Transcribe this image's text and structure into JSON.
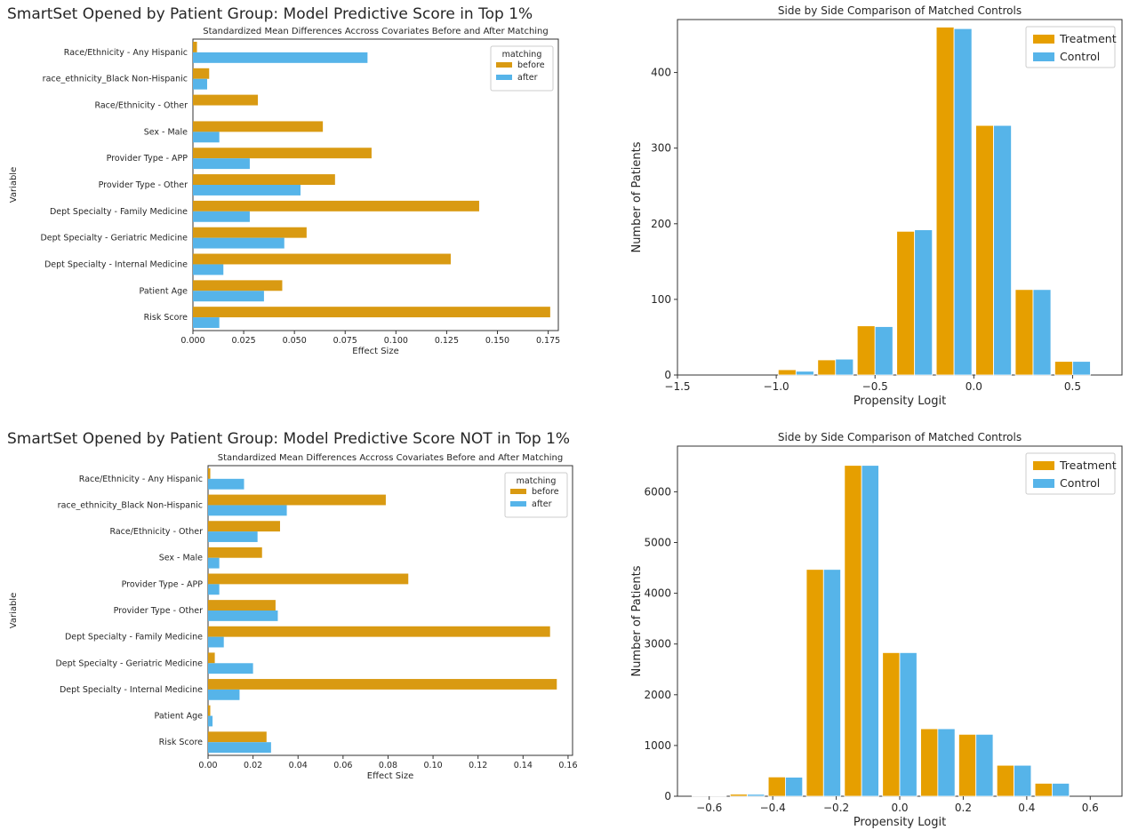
{
  "colors": {
    "before": "#d99a12",
    "after": "#56b4e9",
    "treatment": "#e69f00",
    "control": "#56b4e9"
  },
  "panels": [
    {
      "big_title": "SmartSet Opened by Patient Group: Model Predictive Score in Top 1%",
      "chart_data": {
        "type": "bar",
        "orientation": "horizontal",
        "title": "Standardized Mean Differences Accross Covariates Before and After Matching",
        "xlabel": "Effect Size",
        "ylabel": "Variable",
        "xlim": [
          0,
          0.18
        ],
        "xticks": [
          0.0,
          0.025,
          0.05,
          0.075,
          0.1,
          0.125,
          0.15,
          0.175
        ],
        "xtick_labels": [
          "0.000",
          "0.025",
          "0.050",
          "0.075",
          "0.100",
          "0.125",
          "0.150",
          "0.175"
        ],
        "categories": [
          "Race/Ethnicity - Any Hispanic",
          "race_ethnicity_Black Non-Hispanic",
          "Race/Ethnicity - Other",
          "Sex - Male",
          "Provider Type - APP",
          "Provider Type - Other",
          "Dept Specialty - Family Medicine",
          "Dept Specialty - Geriatric Medicine",
          "Dept Specialty - Internal Medicine",
          "Patient Age",
          "Risk Score"
        ],
        "legend_title": "matching",
        "legend_position": "upper right",
        "series": [
          {
            "name": "before",
            "values": [
              0.002,
              0.008,
              0.032,
              0.064,
              0.088,
              0.07,
              0.141,
              0.056,
              0.127,
              0.044,
              0.176
            ]
          },
          {
            "name": "after",
            "values": [
              0.086,
              0.007,
              0.0,
              0.013,
              0.028,
              0.053,
              0.028,
              0.045,
              0.015,
              0.035,
              0.013
            ]
          }
        ]
      }
    },
    {
      "chart_data": {
        "type": "bar",
        "title": "Side by Side Comparison of Matched Controls",
        "xlabel": "Propensity Logit",
        "ylabel": "Number of Patients",
        "xlim": [
          -1.5,
          0.75
        ],
        "ylim": [
          0,
          470
        ],
        "xticks": [
          -1.5,
          -1.0,
          -0.5,
          0.0,
          0.5
        ],
        "xtick_labels": [
          "−1.5",
          "−1.0",
          "−0.5",
          "0.0",
          "0.5"
        ],
        "yticks": [
          0,
          100,
          200,
          300,
          400
        ],
        "yticks_labels": [
          "0",
          "100",
          "200",
          "300",
          "400"
        ],
        "bin_centers": [
          -0.9,
          -0.7,
          -0.5,
          -0.3,
          -0.1,
          0.1,
          0.3,
          0.5
        ],
        "bin_width": 0.18,
        "legend_position": "upper right",
        "series": [
          {
            "name": "Treatment",
            "values": [
              7,
              20,
              65,
              190,
              460,
              330,
              113,
              18
            ]
          },
          {
            "name": "Control",
            "values": [
              5,
              21,
              64,
              192,
              458,
              330,
              113,
              18
            ]
          }
        ]
      }
    },
    {
      "big_title": "SmartSet Opened by Patient Group: Model Predictive Score NOT in Top 1%",
      "chart_data": {
        "type": "bar",
        "orientation": "horizontal",
        "title": "Standardized Mean Differences Accross Covariates Before and After Matching",
        "xlabel": "Effect Size",
        "ylabel": "Variable",
        "xlim": [
          0,
          0.162
        ],
        "xticks": [
          0.0,
          0.02,
          0.04,
          0.06,
          0.08,
          0.1,
          0.12,
          0.14,
          0.16
        ],
        "xtick_labels": [
          "0.00",
          "0.02",
          "0.04",
          "0.06",
          "0.08",
          "0.10",
          "0.12",
          "0.14",
          "0.16"
        ],
        "categories": [
          "Race/Ethnicity - Any Hispanic",
          "race_ethnicity_Black Non-Hispanic",
          "Race/Ethnicity - Other",
          "Sex - Male",
          "Provider Type - APP",
          "Provider Type - Other",
          "Dept Specialty - Family Medicine",
          "Dept Specialty - Geriatric Medicine",
          "Dept Specialty - Internal Medicine",
          "Patient Age",
          "Risk Score"
        ],
        "legend_title": "matching",
        "legend_position": "upper right",
        "series": [
          {
            "name": "before",
            "values": [
              0.001,
              0.079,
              0.032,
              0.024,
              0.089,
              0.03,
              0.152,
              0.003,
              0.155,
              0.001,
              0.026
            ]
          },
          {
            "name": "after",
            "values": [
              0.016,
              0.035,
              0.022,
              0.005,
              0.005,
              0.031,
              0.007,
              0.02,
              0.014,
              0.002,
              0.028
            ]
          }
        ]
      }
    },
    {
      "chart_data": {
        "type": "bar",
        "title": "Side by Side Comparison of Matched Controls",
        "xlabel": "Propensity Logit",
        "ylabel": "Number of Patients",
        "xlim": [
          -0.7,
          0.7
        ],
        "ylim": [
          0,
          6900
        ],
        "xticks": [
          -0.6,
          -0.4,
          -0.2,
          0.0,
          0.2,
          0.4,
          0.6
        ],
        "xtick_labels": [
          "−0.6",
          "−0.4",
          "−0.2",
          "0.0",
          "0.2",
          "0.4",
          "0.6"
        ],
        "yticks": [
          0,
          1000,
          2000,
          3000,
          4000,
          5000,
          6000
        ],
        "yticks_labels": [
          "0",
          "1000",
          "2000",
          "3000",
          "4000",
          "5000",
          "6000"
        ],
        "bin_centers": [
          -0.6,
          -0.48,
          -0.36,
          -0.24,
          -0.12,
          0.0,
          0.12,
          0.24,
          0.36,
          0.48,
          0.6
        ],
        "bin_width": 0.108,
        "legend_position": "upper right",
        "series": [
          {
            "name": "Treatment",
            "values": [
              5,
              40,
              380,
              4470,
              6520,
              2830,
              1330,
              1220,
              610,
              255,
              0
            ]
          },
          {
            "name": "Control",
            "values": [
              3,
              38,
              375,
              4470,
              6520,
              2830,
              1330,
              1220,
              610,
              255,
              0
            ]
          }
        ]
      }
    }
  ]
}
